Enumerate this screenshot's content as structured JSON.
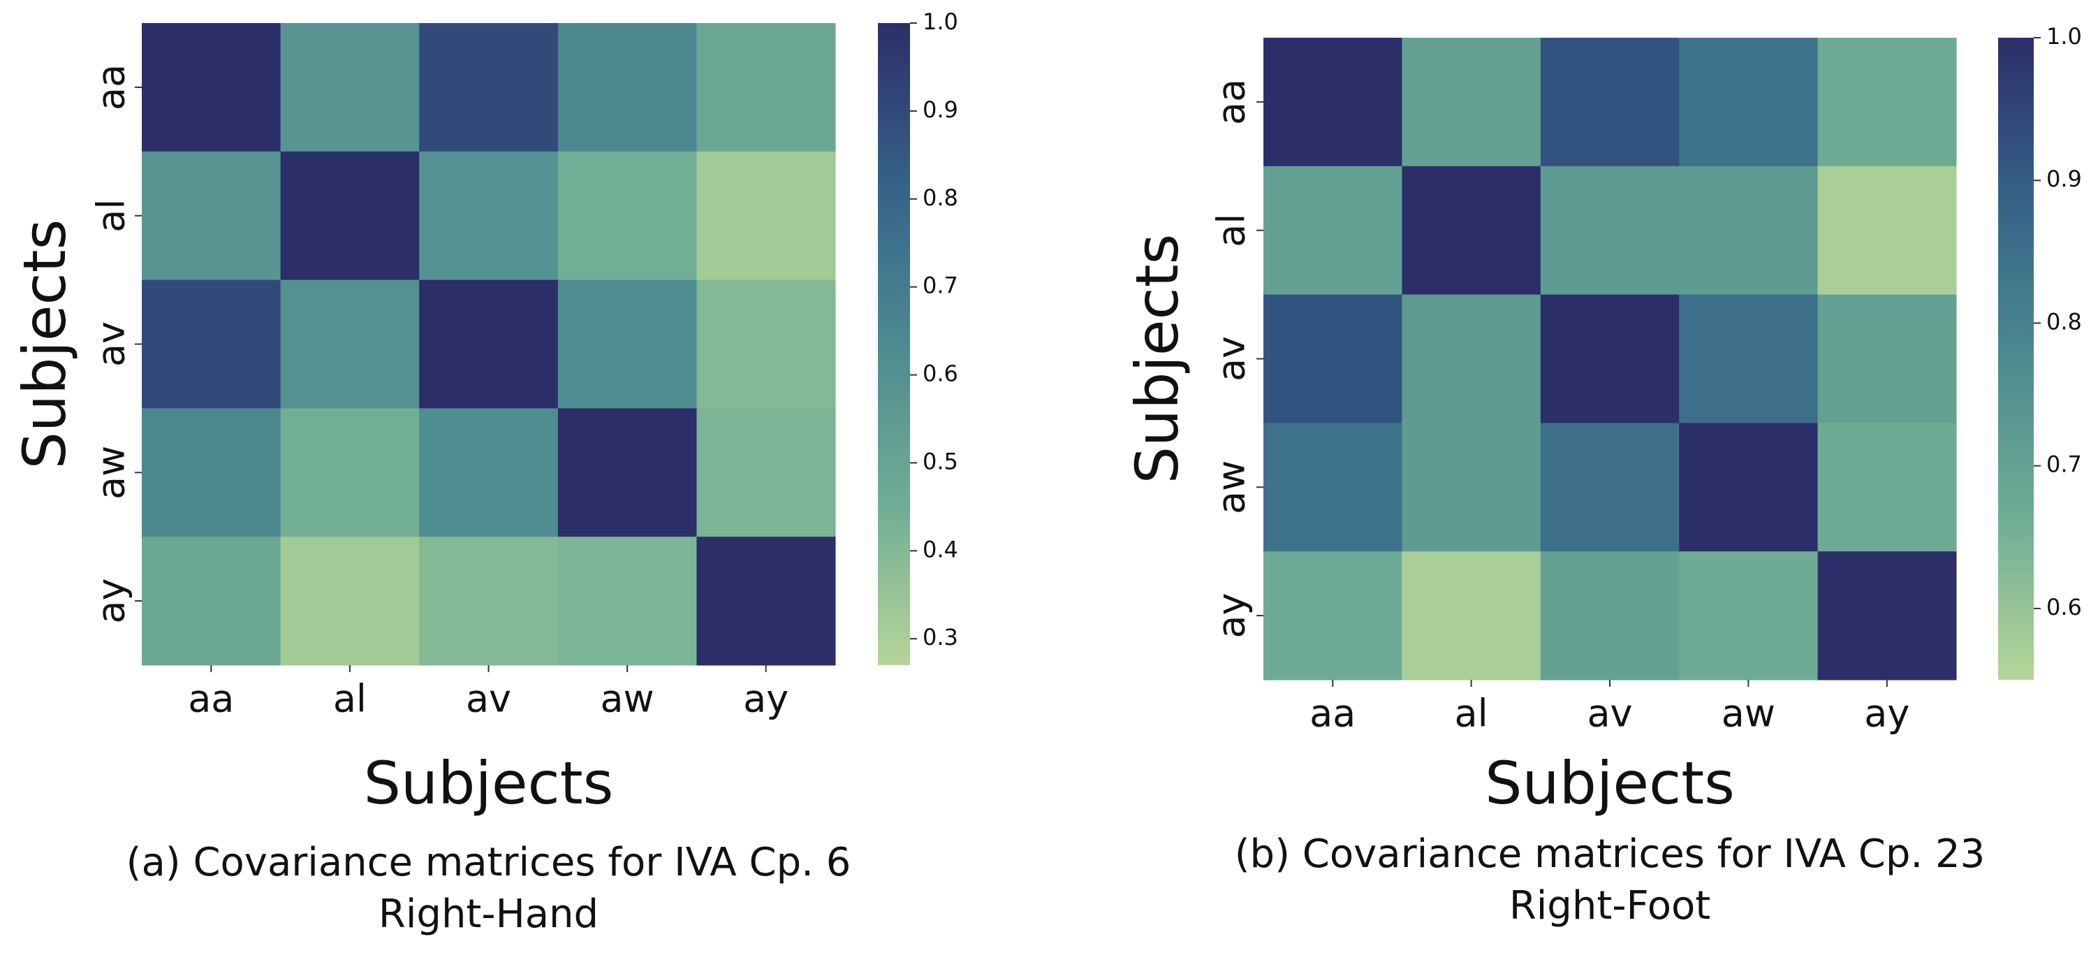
{
  "chart_data": [
    {
      "type": "heatmap",
      "x_categories": [
        "aa",
        "al",
        "av",
        "aw",
        "ay"
      ],
      "y_categories": [
        "aa",
        "al",
        "av",
        "aw",
        "ay"
      ],
      "values": [
        [
          1.0,
          0.58,
          0.9,
          0.65,
          0.48
        ],
        [
          0.58,
          1.0,
          0.6,
          0.45,
          0.32
        ],
        [
          0.9,
          0.6,
          1.0,
          0.62,
          0.4
        ],
        [
          0.65,
          0.45,
          0.62,
          1.0,
          0.42
        ],
        [
          0.48,
          0.32,
          0.4,
          0.42,
          1.0
        ]
      ],
      "xlabel": "Subjects",
      "ylabel": "Subjects",
      "caption": [
        "(a) Covariance matrices for IVA Cp. 6",
        "Right-Hand"
      ],
      "colorbar_lim": [
        0.27,
        1.0
      ],
      "colorbar_ticks": [
        0.3,
        0.4,
        0.5,
        0.6,
        0.7,
        0.8,
        0.9,
        {
          "value": 1.0,
          "label": "1.0"
        }
      ],
      "colormap": [
        "#b5d598",
        "#70ad95",
        "#4d8a90",
        "#356288",
        "#2c2e6a"
      ]
    },
    {
      "type": "heatmap",
      "x_categories": [
        "aa",
        "al",
        "av",
        "aw",
        "ay"
      ],
      "y_categories": [
        "aa",
        "al",
        "av",
        "aw",
        "ay"
      ],
      "values": [
        [
          1.0,
          0.7,
          0.92,
          0.84,
          0.67
        ],
        [
          0.7,
          1.0,
          0.72,
          0.72,
          0.57
        ],
        [
          0.92,
          0.72,
          1.0,
          0.85,
          0.7
        ],
        [
          0.84,
          0.72,
          0.85,
          1.0,
          0.67
        ],
        [
          0.67,
          0.57,
          0.7,
          0.67,
          1.0
        ]
      ],
      "xlabel": "Subjects",
      "ylabel": "Subjects",
      "caption": [
        "(b) Covariance matrices for IVA Cp. 23",
        "Right-Foot"
      ],
      "colorbar_lim": [
        0.55,
        1.0
      ],
      "colorbar_ticks": [
        0.6,
        0.7,
        0.8,
        0.9,
        {
          "value": 1.0,
          "label": "1.0"
        }
      ],
      "colormap": [
        "#b5d598",
        "#70ad95",
        "#4d8a90",
        "#356288",
        "#2c2e6a"
      ]
    }
  ]
}
